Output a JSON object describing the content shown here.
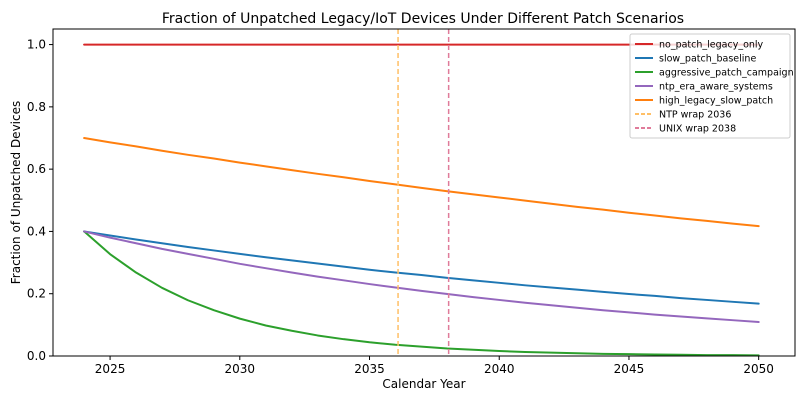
{
  "chart_data": {
    "type": "line",
    "title": "Fraction of Unpatched Legacy/IoT Devices Under Different Patch Scenarios",
    "xlabel": "Calendar Year",
    "ylabel": "Fraction of Unpatched Devices",
    "xlim": [
      2022.8,
      2051.4
    ],
    "ylim": [
      0.0,
      1.05
    ],
    "xticks": [
      2025,
      2030,
      2035,
      2040,
      2045,
      2050
    ],
    "yticks": [
      0.0,
      0.2,
      0.4,
      0.6,
      0.8,
      1.0
    ],
    "xtick_labels": [
      "2025",
      "2030",
      "2035",
      "2040",
      "2045",
      "2050"
    ],
    "ytick_labels": [
      "0.0",
      "0.2",
      "0.4",
      "0.6",
      "0.8",
      "1.0"
    ],
    "grid": false,
    "legend_position": "top-right",
    "x": [
      2024,
      2025,
      2026,
      2027,
      2028,
      2029,
      2030,
      2031,
      2032,
      2033,
      2034,
      2035,
      2036,
      2037,
      2038,
      2039,
      2040,
      2041,
      2042,
      2043,
      2044,
      2045,
      2046,
      2047,
      2048,
      2049,
      2050
    ],
    "series": [
      {
        "name": "no_patch_legacy_only",
        "color": "#d62728",
        "style": "solid",
        "values": [
          1.0,
          1.0,
          1.0,
          1.0,
          1.0,
          1.0,
          1.0,
          1.0,
          1.0,
          1.0,
          1.0,
          1.0,
          1.0,
          1.0,
          1.0,
          1.0,
          1.0,
          1.0,
          1.0,
          1.0,
          1.0,
          1.0,
          1.0,
          1.0,
          1.0,
          1.0,
          1.0
        ]
      },
      {
        "name": "slow_patch_baseline",
        "color": "#1f77b4",
        "style": "solid",
        "values": [
          0.4,
          0.387,
          0.374,
          0.362,
          0.35,
          0.339,
          0.328,
          0.317,
          0.307,
          0.297,
          0.287,
          0.277,
          0.268,
          0.26,
          0.251,
          0.243,
          0.235,
          0.227,
          0.22,
          0.213,
          0.206,
          0.199,
          0.193,
          0.186,
          0.18,
          0.174,
          0.168
        ]
      },
      {
        "name": "aggressive_patch_campaign",
        "color": "#2ca02c",
        "style": "solid",
        "values": [
          0.4,
          0.327,
          0.268,
          0.219,
          0.179,
          0.147,
          0.12,
          0.098,
          0.081,
          0.066,
          0.054,
          0.044,
          0.036,
          0.03,
          0.024,
          0.02,
          0.016,
          0.013,
          0.011,
          0.009,
          0.007,
          0.006,
          0.005,
          0.004,
          0.003,
          0.003,
          0.002
        ]
      },
      {
        "name": "ntp_era_aware_systems",
        "color": "#9467bd",
        "style": "solid",
        "values": [
          0.4,
          0.38,
          0.362,
          0.344,
          0.328,
          0.312,
          0.296,
          0.282,
          0.268,
          0.255,
          0.243,
          0.231,
          0.22,
          0.209,
          0.199,
          0.189,
          0.18,
          0.171,
          0.163,
          0.155,
          0.147,
          0.14,
          0.133,
          0.127,
          0.121,
          0.115,
          0.109
        ]
      },
      {
        "name": "high_legacy_slow_patch",
        "color": "#ff7f0e",
        "style": "solid",
        "values": [
          0.7,
          0.686,
          0.673,
          0.659,
          0.646,
          0.634,
          0.621,
          0.609,
          0.597,
          0.585,
          0.574,
          0.562,
          0.551,
          0.54,
          0.529,
          0.519,
          0.509,
          0.499,
          0.489,
          0.479,
          0.47,
          0.46,
          0.451,
          0.442,
          0.434,
          0.425,
          0.417
        ]
      }
    ],
    "vlines": [
      {
        "name": "NTP wrap 2036",
        "x": 2036.1,
        "color": "#ffbf66",
        "style": "dashed"
      },
      {
        "name": "UNIX wrap 2038",
        "x": 2038.05,
        "color": "#e07b9a",
        "style": "dashed"
      }
    ]
  }
}
